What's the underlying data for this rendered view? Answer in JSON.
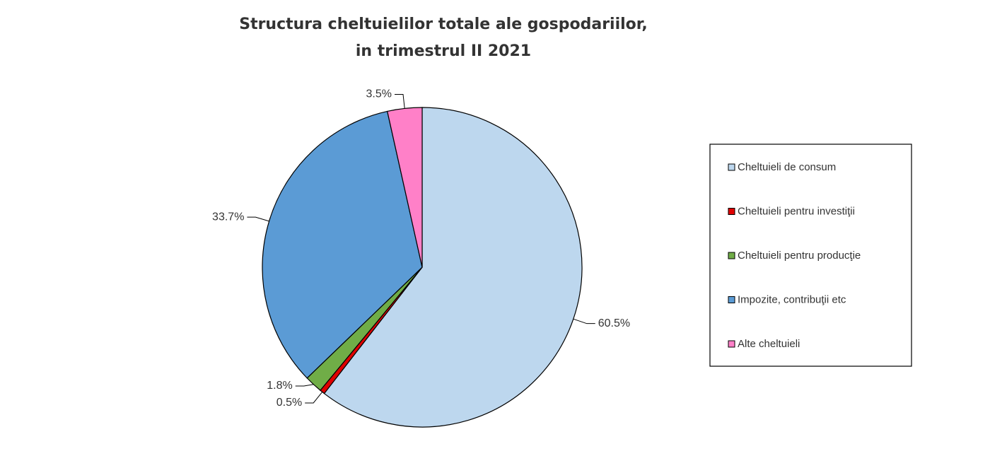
{
  "chart_data": {
    "type": "pie",
    "title": [
      "Structura cheltuielilor totale ale gospodariilor,",
      "in trimestrul II 2021"
    ],
    "categories": [
      "Cheltuieli de consum",
      "Cheltuieli pentru investiţii",
      "Cheltuieli pentru producţie",
      "Impozite, contribuţii etc",
      "Alte cheltuieli"
    ],
    "values": [
      60.5,
      0.5,
      1.8,
      33.7,
      3.5
    ],
    "value_labels": [
      "60.5%",
      "0.5%",
      "1.8%",
      "33.7%",
      "3.5%"
    ],
    "colors": [
      "#bdd7ee",
      "#e00000",
      "#70ad47",
      "#5b9bd5",
      "#ff80c8"
    ],
    "legend": "right"
  }
}
